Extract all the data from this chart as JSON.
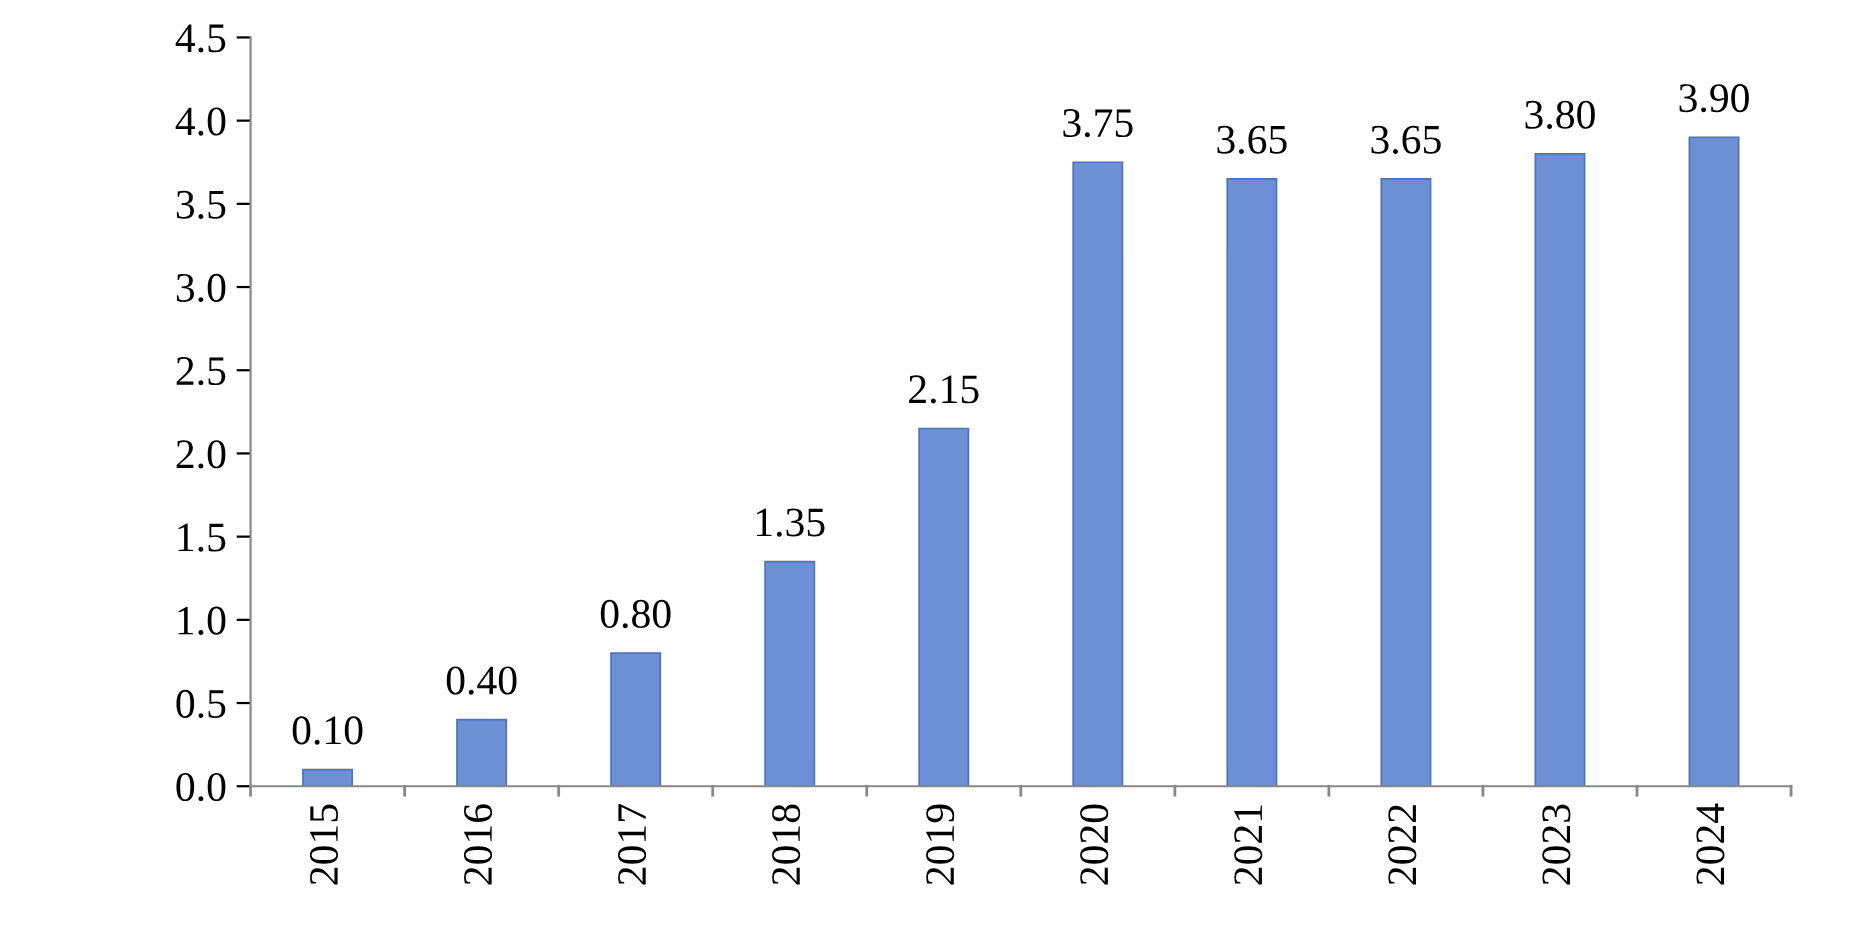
{
  "chart_data": {
    "type": "bar",
    "categories": [
      "2015",
      "2016",
      "2017",
      "2018",
      "2019",
      "2020",
      "2021",
      "2022",
      "2023",
      "2024"
    ],
    "values": [
      0.1,
      0.4,
      0.8,
      1.35,
      2.15,
      3.75,
      3.65,
      3.65,
      3.8,
      3.9
    ],
    "value_labels": [
      "0.10",
      "0.40",
      "0.80",
      "1.35",
      "2.15",
      "3.75",
      "3.65",
      "3.65",
      "3.80",
      "3.90"
    ],
    "color": "#6d90d4",
    "ylim": [
      0,
      4.5
    ],
    "yticks": [
      {
        "value": 0,
        "label": "0.0"
      },
      {
        "value": 0.5,
        "label": "0.5"
      },
      {
        "value": 1,
        "label": "1.0"
      },
      {
        "value": 1.5,
        "label": "1.5"
      },
      {
        "value": 2,
        "label": "2.0"
      },
      {
        "value": 2.5,
        "label": "2.5"
      },
      {
        "value": 3,
        "label": "3.0"
      },
      {
        "value": 3.5,
        "label": "3.5"
      },
      {
        "value": 4,
        "label": "4.0"
      },
      {
        "value": 4.5,
        "label": "4.5"
      }
    ],
    "grid": false
  }
}
